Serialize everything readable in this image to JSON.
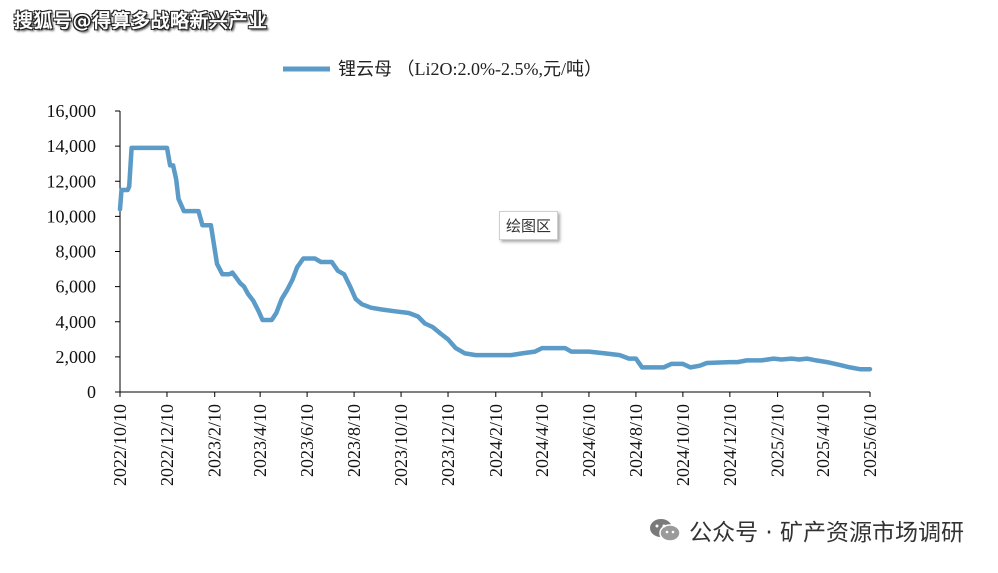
{
  "watermark_top": "搜狐号@得算多战略新兴产业",
  "footer": {
    "icon": "wechat-icon",
    "text": "公众号 · 矿产资源市场调研"
  },
  "tooltip": "绘图区",
  "chart_data": {
    "type": "line",
    "title": "",
    "xlabel": "",
    "ylabel": "",
    "ylim": [
      0,
      16000
    ],
    "xlim": [
      "2022-10-10",
      "2025-06-10"
    ],
    "grid": false,
    "legend_position": "top-center",
    "color": "#5b9bc8",
    "y_ticks": [
      "0",
      "2,000",
      "4,000",
      "6,000",
      "8,000",
      "10,000",
      "12,000",
      "14,000",
      "16,000"
    ],
    "x_ticks": [
      "2022/10/10",
      "2022/12/10",
      "2023/2/10",
      "2023/4/10",
      "2023/6/10",
      "2023/8/10",
      "2023/10/10",
      "2023/12/10",
      "2024/2/10",
      "2024/4/10",
      "2024/6/10",
      "2024/8/10",
      "2024/10/10",
      "2024/12/10",
      "2025/2/10",
      "2025/4/10",
      "2025/6/10"
    ],
    "series": [
      {
        "name": "锂云母 （Li2O:2.0%-2.5%,元/吨）",
        "points": [
          [
            "2022-10-10",
            10400
          ],
          [
            "2022-10-12",
            11500
          ],
          [
            "2022-10-20",
            11500
          ],
          [
            "2022-10-22",
            11700
          ],
          [
            "2022-10-25",
            13900
          ],
          [
            "2022-12-10",
            13900
          ],
          [
            "2022-12-14",
            12900
          ],
          [
            "2022-12-18",
            12900
          ],
          [
            "2022-12-22",
            12100
          ],
          [
            "2022-12-25",
            11000
          ],
          [
            "2023-01-01",
            10300
          ],
          [
            "2023-01-20",
            10300
          ],
          [
            "2023-01-25",
            9500
          ],
          [
            "2023-02-05",
            9500
          ],
          [
            "2023-02-13",
            7300
          ],
          [
            "2023-02-20",
            6700
          ],
          [
            "2023-03-01",
            6700
          ],
          [
            "2023-03-05",
            6800
          ],
          [
            "2023-03-10",
            6500
          ],
          [
            "2023-03-15",
            6200
          ],
          [
            "2023-03-20",
            6000
          ],
          [
            "2023-03-25",
            5600
          ],
          [
            "2023-04-01",
            5200
          ],
          [
            "2023-04-08",
            4600
          ],
          [
            "2023-04-13",
            4100
          ],
          [
            "2023-04-25",
            4100
          ],
          [
            "2023-05-01",
            4500
          ],
          [
            "2023-05-08",
            5300
          ],
          [
            "2023-05-15",
            5800
          ],
          [
            "2023-05-22",
            6400
          ],
          [
            "2023-05-28",
            7100
          ],
          [
            "2023-06-05",
            7600
          ],
          [
            "2023-06-20",
            7600
          ],
          [
            "2023-06-28",
            7400
          ],
          [
            "2023-07-12",
            7400
          ],
          [
            "2023-07-20",
            6900
          ],
          [
            "2023-07-28",
            6700
          ],
          [
            "2023-08-05",
            6000
          ],
          [
            "2023-08-12",
            5300
          ],
          [
            "2023-08-20",
            5000
          ],
          [
            "2023-09-01",
            4800
          ],
          [
            "2023-09-15",
            4700
          ],
          [
            "2023-10-01",
            4600
          ],
          [
            "2023-10-20",
            4500
          ],
          [
            "2023-11-01",
            4300
          ],
          [
            "2023-11-10",
            3900
          ],
          [
            "2023-11-20",
            3700
          ],
          [
            "2023-12-01",
            3300
          ],
          [
            "2023-12-10",
            3000
          ],
          [
            "2023-12-20",
            2500
          ],
          [
            "2024-01-01",
            2200
          ],
          [
            "2024-01-15",
            2100
          ],
          [
            "2024-03-01",
            2100
          ],
          [
            "2024-03-15",
            2200
          ],
          [
            "2024-04-01",
            2300
          ],
          [
            "2024-04-10",
            2500
          ],
          [
            "2024-05-10",
            2500
          ],
          [
            "2024-05-18",
            2300
          ],
          [
            "2024-06-10",
            2300
          ],
          [
            "2024-07-01",
            2200
          ],
          [
            "2024-07-20",
            2100
          ],
          [
            "2024-08-01",
            1900
          ],
          [
            "2024-08-10",
            1900
          ],
          [
            "2024-08-18",
            1400
          ],
          [
            "2024-09-15",
            1400
          ],
          [
            "2024-09-25",
            1600
          ],
          [
            "2024-10-10",
            1600
          ],
          [
            "2024-10-20",
            1400
          ],
          [
            "2024-11-01",
            1500
          ],
          [
            "2024-11-10",
            1650
          ],
          [
            "2024-12-10",
            1700
          ],
          [
            "2024-12-20",
            1700
          ],
          [
            "2025-01-01",
            1800
          ],
          [
            "2025-01-20",
            1800
          ],
          [
            "2025-02-05",
            1900
          ],
          [
            "2025-02-15",
            1850
          ],
          [
            "2025-02-28",
            1900
          ],
          [
            "2025-03-10",
            1850
          ],
          [
            "2025-03-20",
            1900
          ],
          [
            "2025-04-01",
            1800
          ],
          [
            "2025-04-15",
            1700
          ],
          [
            "2025-05-01",
            1550
          ],
          [
            "2025-05-15",
            1400
          ],
          [
            "2025-05-28",
            1300
          ],
          [
            "2025-06-10",
            1300
          ]
        ]
      }
    ]
  }
}
